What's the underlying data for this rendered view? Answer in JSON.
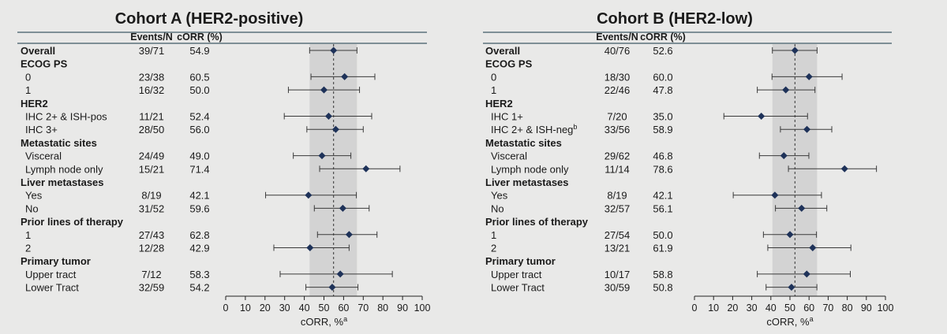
{
  "colors": {
    "background": "#e9e9e8",
    "rule": "#3f5a66",
    "marker": "#1e3259",
    "ci_band": "#d3d3d3",
    "text": "#1a1a1a"
  },
  "chart_data": [
    {
      "type": "forest",
      "title": "Cohort A (HER2-positive)",
      "col_events_header": "Events/N",
      "col_corr_header": "cORR (%)",
      "xlabel": "cORR, %",
      "xlabel_sup": "a",
      "xlim": [
        0,
        100
      ],
      "xticks": [
        "0",
        "10",
        "20",
        "30",
        "40",
        "50",
        "60",
        "70",
        "80",
        "90",
        "100"
      ],
      "reference_line": 54.9,
      "ci_band": [
        42.7,
        66.8
      ],
      "rows": [
        {
          "kind": "data",
          "label": "Overall",
          "bold": true,
          "events": "39/71",
          "corr": "54.9",
          "est": 54.9,
          "lo": 42.7,
          "hi": 66.8
        },
        {
          "kind": "header",
          "label": "ECOG PS"
        },
        {
          "kind": "data",
          "label": "0",
          "events": "23/38",
          "corr": "60.5",
          "est": 60.5,
          "lo": 43.4,
          "hi": 75.9
        },
        {
          "kind": "data",
          "label": "1",
          "events": "16/32",
          "corr": "50.0",
          "est": 50.0,
          "lo": 31.9,
          "hi": 68.1
        },
        {
          "kind": "header",
          "label": "HER2"
        },
        {
          "kind": "data",
          "label": "IHC 2+ & ISH-pos",
          "events": "11/21",
          "corr": "52.4",
          "est": 52.4,
          "lo": 29.8,
          "hi": 74.3
        },
        {
          "kind": "data",
          "label": "IHC 3+",
          "events": "28/50",
          "corr": "56.0",
          "est": 56.0,
          "lo": 41.3,
          "hi": 70.0
        },
        {
          "kind": "header",
          "label": "Metastatic sites"
        },
        {
          "kind": "data",
          "label": "Visceral",
          "events": "24/49",
          "corr": "49.0",
          "est": 49.0,
          "lo": 34.4,
          "hi": 63.7
        },
        {
          "kind": "data",
          "label": "Lymph node only",
          "events": "15/21",
          "corr": "71.4",
          "est": 71.4,
          "lo": 47.8,
          "hi": 88.7
        },
        {
          "kind": "header",
          "label": "Liver metastases"
        },
        {
          "kind": "data",
          "label": "Yes",
          "events": "8/19",
          "corr": "42.1",
          "est": 42.1,
          "lo": 20.3,
          "hi": 66.5
        },
        {
          "kind": "data",
          "label": "No",
          "events": "31/52",
          "corr": "59.6",
          "est": 59.6,
          "lo": 45.1,
          "hi": 73.0
        },
        {
          "kind": "header",
          "label": "Prior lines of therapy"
        },
        {
          "kind": "data",
          "label": "1",
          "events": "27/43",
          "corr": "62.8",
          "est": 62.8,
          "lo": 46.7,
          "hi": 77.0
        },
        {
          "kind": "data",
          "label": "2",
          "events": "12/28",
          "corr": "42.9",
          "est": 42.9,
          "lo": 24.5,
          "hi": 62.8
        },
        {
          "kind": "header",
          "label": "Primary tumor"
        },
        {
          "kind": "data",
          "label": "Upper tract",
          "events": "7/12",
          "corr": "58.3",
          "est": 58.3,
          "lo": 27.7,
          "hi": 84.8
        },
        {
          "kind": "data",
          "label": "Lower Tract",
          "events": "32/59",
          "corr": "54.2",
          "est": 54.2,
          "lo": 40.8,
          "hi": 67.3
        }
      ]
    },
    {
      "type": "forest",
      "title": "Cohort B (HER2-low)",
      "col_events_header": "Events/N",
      "col_corr_header": "cORR (%)",
      "xlabel": "cORR, %",
      "xlabel_sup": "a",
      "xlim": [
        0,
        100
      ],
      "xticks": [
        "0",
        "10",
        "20",
        "30",
        "40",
        "50",
        "60",
        "70",
        "80",
        "90",
        "100"
      ],
      "reference_line": 52.6,
      "ci_band": [
        40.8,
        64.2
      ],
      "rows": [
        {
          "kind": "data",
          "label": "Overall",
          "bold": true,
          "events": "40/76",
          "corr": "52.6",
          "est": 52.6,
          "lo": 40.8,
          "hi": 64.2
        },
        {
          "kind": "header",
          "label": "ECOG PS"
        },
        {
          "kind": "data",
          "label": "0",
          "events": "18/30",
          "corr": "60.0",
          "est": 60.0,
          "lo": 40.6,
          "hi": 77.3
        },
        {
          "kind": "data",
          "label": "1",
          "events": "22/46",
          "corr": "47.8",
          "est": 47.8,
          "lo": 32.9,
          "hi": 63.1
        },
        {
          "kind": "header",
          "label": "HER2"
        },
        {
          "kind": "data",
          "label": "IHC 1+",
          "events": "7/20",
          "corr": "35.0",
          "est": 35.0,
          "lo": 15.4,
          "hi": 59.2
        },
        {
          "kind": "data",
          "label": "IHC 2+ & ISH-neg",
          "label_sup": "b",
          "events": "33/56",
          "corr": "58.9",
          "est": 58.9,
          "lo": 45.0,
          "hi": 71.9
        },
        {
          "kind": "header",
          "label": "Metastatic sites"
        },
        {
          "kind": "data",
          "label": "Visceral",
          "events": "29/62",
          "corr": "46.8",
          "est": 46.8,
          "lo": 34.0,
          "hi": 59.9
        },
        {
          "kind": "data",
          "label": "Lymph node only",
          "events": "11/14",
          "corr": "78.6",
          "est": 78.6,
          "lo": 49.2,
          "hi": 95.3
        },
        {
          "kind": "header",
          "label": "Liver metastases"
        },
        {
          "kind": "data",
          "label": "Yes",
          "events": "8/19",
          "corr": "42.1",
          "est": 42.1,
          "lo": 20.3,
          "hi": 66.5
        },
        {
          "kind": "data",
          "label": "No",
          "events": "32/57",
          "corr": "56.1",
          "est": 56.1,
          "lo": 42.4,
          "hi": 69.3
        },
        {
          "kind": "header",
          "label": "Prior lines of therapy"
        },
        {
          "kind": "data",
          "label": "1",
          "events": "27/54",
          "corr": "50.0",
          "est": 50.0,
          "lo": 36.1,
          "hi": 63.9
        },
        {
          "kind": "data",
          "label": "2",
          "events": "13/21",
          "corr": "61.9",
          "est": 61.9,
          "lo": 38.4,
          "hi": 81.9
        },
        {
          "kind": "header",
          "label": "Primary tumor"
        },
        {
          "kind": "data",
          "label": "Upper tract",
          "events": "10/17",
          "corr": "58.8",
          "est": 58.8,
          "lo": 32.9,
          "hi": 81.6
        },
        {
          "kind": "data",
          "label": "Lower Tract",
          "events": "30/59",
          "corr": "50.8",
          "est": 50.8,
          "lo": 37.5,
          "hi": 64.1
        }
      ]
    }
  ]
}
